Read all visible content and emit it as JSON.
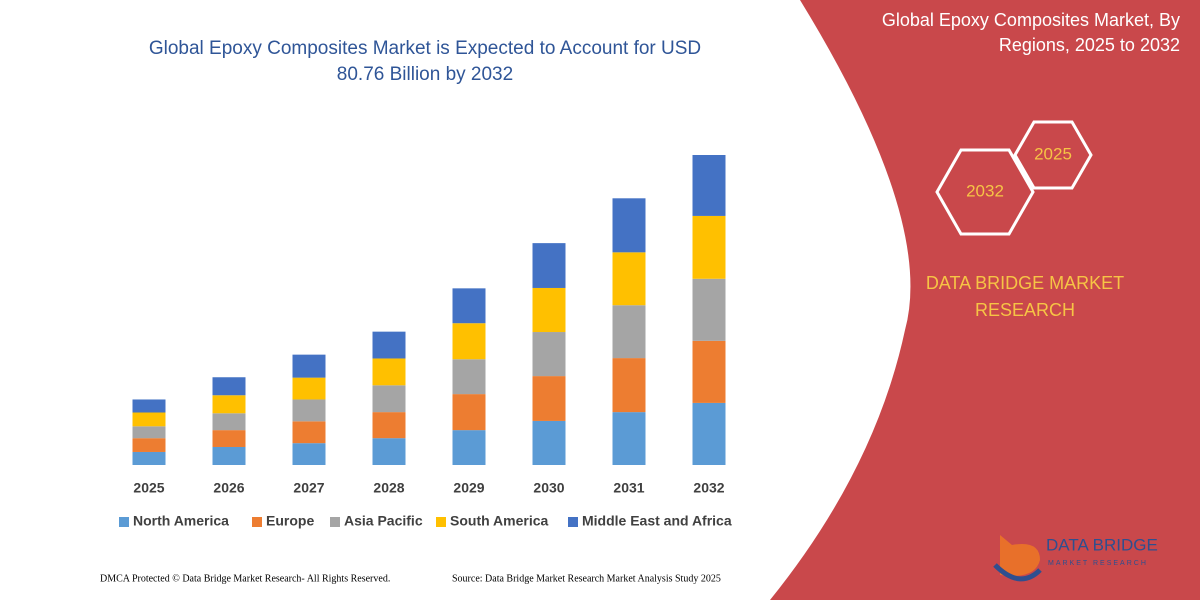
{
  "chart_data": {
    "type": "bar",
    "stacked": true,
    "title": "Global Epoxy Composites Market is Expected to Account for USD 80.76 Billion by 2032",
    "categories": [
      "2025",
      "2026",
      "2027",
      "2028",
      "2029",
      "2030",
      "2031",
      "2032"
    ],
    "series": [
      {
        "name": "North America",
        "color": "#5b9bd5",
        "values": [
          3.4,
          4.7,
          5.7,
          7.0,
          9.1,
          11.5,
          13.8,
          16.2
        ]
      },
      {
        "name": "Europe",
        "color": "#ed7d31",
        "values": [
          3.6,
          4.4,
          5.7,
          6.8,
          9.4,
          11.7,
          14.1,
          16.2
        ]
      },
      {
        "name": "Asia Pacific",
        "color": "#a5a5a5",
        "values": [
          3.1,
          4.4,
          5.7,
          7.0,
          9.1,
          11.5,
          13.8,
          16.2
        ]
      },
      {
        "name": "South America",
        "color": "#ffc000",
        "values": [
          3.6,
          4.7,
          5.7,
          7.0,
          9.4,
          11.5,
          13.8,
          16.4
        ]
      },
      {
        "name": "Middle East and Africa",
        "color": "#4472c4",
        "values": [
          3.4,
          4.7,
          6.0,
          7.0,
          9.1,
          11.7,
          14.1,
          15.9
        ]
      }
    ]
  },
  "panel": {
    "title": "Global Epoxy Composites Market, By Regions, 2025 to 2032",
    "hex_labels": [
      "2032",
      "2025"
    ],
    "brand": "DATA BRIDGE MARKET RESEARCH"
  },
  "logo": {
    "name": "DATA BRIDGE",
    "tagline": "MARKET RESEARCH"
  },
  "footer": {
    "left": "DMCA Protected © Data Bridge Market Research-  All Rights Reserved.",
    "right": "Source: Data Bridge Market Research  Market Analysis Study 2025"
  }
}
